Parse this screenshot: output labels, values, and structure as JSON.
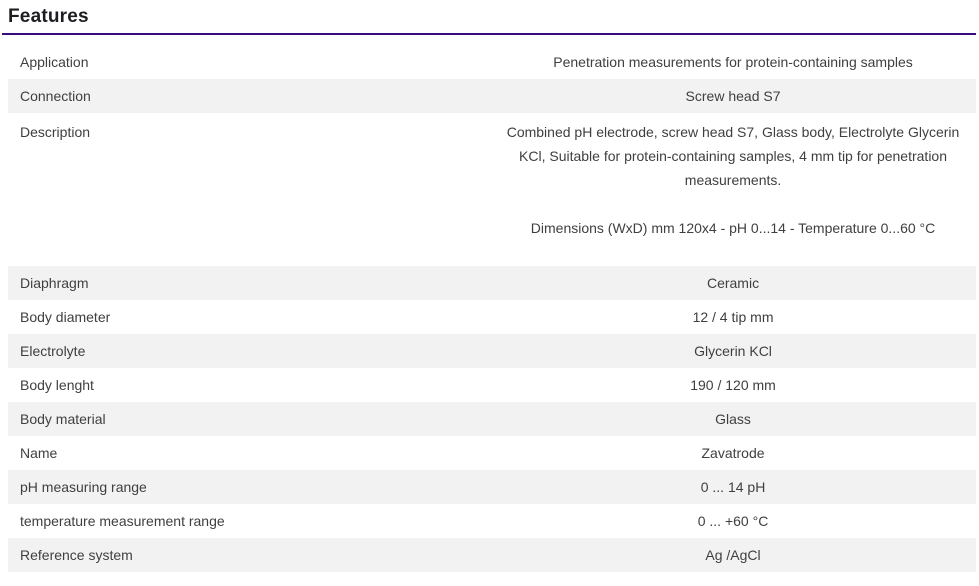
{
  "header": {
    "title": "Features"
  },
  "colors": {
    "accent": "#380d82",
    "stripe": "#f2f2f2",
    "heading_text": "#1d1d22",
    "body_text": "#3f3f3f"
  },
  "table": {
    "rows": [
      {
        "label": "Application",
        "value": "Penetration measurements for protein-containing samples"
      },
      {
        "label": "Connection",
        "value": "Screw head S7"
      },
      {
        "label": "Description",
        "paragraphs": [
          "Combined pH electrode, screw head S7, Glass body, Electrolyte Glycerin KCl, Suitable for protein-containing samples, 4 mm tip for penetration measurements.",
          "Dimensions (WxD) mm 120x4 - pH 0...14 - Temperature 0...60 °C"
        ]
      },
      {
        "label": "Diaphragm",
        "value": "Ceramic"
      },
      {
        "label": "Body diameter",
        "value": "12 / 4 tip mm"
      },
      {
        "label": "Electrolyte",
        "value": "Glycerin KCl"
      },
      {
        "label": "Body lenght",
        "value": "190 / 120 mm"
      },
      {
        "label": "Body material",
        "value": "Glass"
      },
      {
        "label": "Name",
        "value": "Zavatrode"
      },
      {
        "label": "pH measuring range",
        "value": "0 ... 14 pH"
      },
      {
        "label": "temperature measurement range",
        "value": "0 ... +60 °C"
      },
      {
        "label": "Reference system",
        "value": "Ag /AgCl"
      }
    ]
  }
}
